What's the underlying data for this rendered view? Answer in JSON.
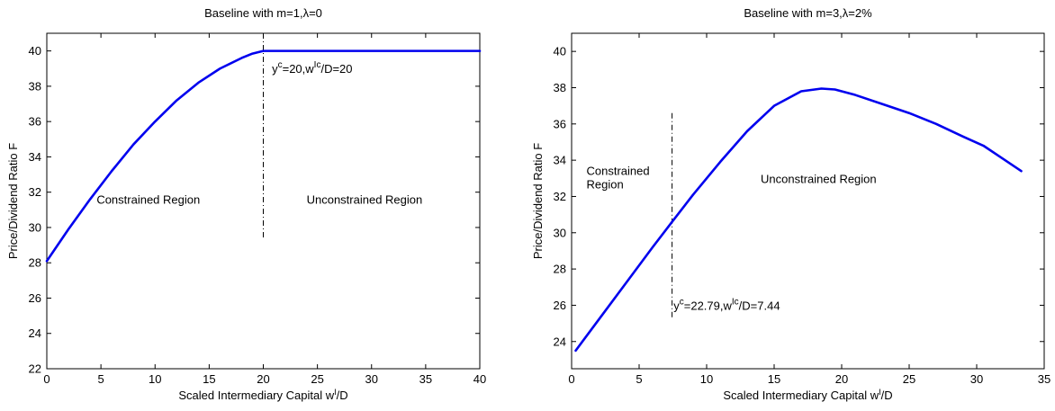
{
  "chart_data": [
    {
      "type": "line",
      "title": "Baseline with m=1,λ=0",
      "xlabel": "Scaled Intermediary Capital w",
      "xlabel_sup": "I",
      "xlabel_tail": "/D",
      "ylabel": "Price/Dividend Ratio F",
      "xlim": [
        0,
        40
      ],
      "ylim": [
        22,
        41
      ],
      "xticks": [
        0,
        5,
        10,
        15,
        20,
        25,
        30,
        35,
        40
      ],
      "yticks": [
        22,
        24,
        26,
        28,
        30,
        32,
        34,
        36,
        38,
        40
      ],
      "grid": false,
      "series": [
        {
          "color": "#0000ee",
          "x": [
            0,
            2,
            4,
            6,
            8,
            10,
            12,
            14,
            16,
            18,
            19,
            20,
            22,
            25,
            30,
            35,
            40
          ],
          "y": [
            28.1,
            29.9,
            31.6,
            33.2,
            34.7,
            36.0,
            37.2,
            38.2,
            39.0,
            39.6,
            39.85,
            40.0,
            40.0,
            40.0,
            40.0,
            40.0,
            40.0
          ]
        }
      ],
      "vline": {
        "x": 20,
        "y_from": 29.4,
        "y_to": 41
      },
      "annotations": [
        {
          "id": "threshold",
          "x": 20.8,
          "y": 38.75,
          "parts": [
            "y",
            "c",
            "=20,w",
            "Ic",
            "/D=20"
          ]
        },
        {
          "id": "left-region",
          "x": 4.6,
          "y": 31.35,
          "text": "Constrained Region"
        },
        {
          "id": "right-region",
          "x": 24,
          "y": 31.35,
          "text": "Unconstrained Region"
        }
      ]
    },
    {
      "type": "line",
      "title": "Baseline with m=3,λ=2%",
      "xlabel": "Scaled Intermediary Capital w",
      "xlabel_sup": "I",
      "xlabel_tail": "/D",
      "ylabel": "Price/Dividend Ratio F",
      "xlim": [
        0,
        35
      ],
      "ylim": [
        22.5,
        41
      ],
      "xticks": [
        0,
        5,
        10,
        15,
        20,
        25,
        30,
        35
      ],
      "yticks": [
        24,
        26,
        28,
        30,
        32,
        34,
        36,
        38,
        40
      ],
      "grid": false,
      "series": [
        {
          "color": "#0000ee",
          "x": [
            0.3,
            2,
            4,
            6,
            7.44,
            9,
            11,
            13,
            15,
            17,
            18.5,
            19.5,
            21,
            23,
            25,
            27,
            29,
            30.5,
            31.7,
            33.3
          ],
          "y": [
            23.5,
            25.2,
            27.2,
            29.2,
            30.6,
            32.1,
            33.9,
            35.6,
            37.0,
            37.8,
            37.95,
            37.9,
            37.6,
            37.1,
            36.6,
            36.0,
            35.3,
            34.8,
            34.2,
            33.4
          ]
        }
      ],
      "vline": {
        "x": 7.44,
        "y_from": 25.3,
        "y_to": 36.6
      },
      "annotations": [
        {
          "id": "threshold",
          "x": 7.55,
          "y": 25.75,
          "parts": [
            "y",
            "c",
            "=22.79,w",
            "Ic",
            "/D=7.44"
          ]
        },
        {
          "id": "left-region",
          "x": 1.1,
          "y": 33.2,
          "lines": [
            "Constrained",
            "Region"
          ]
        },
        {
          "id": "right-region",
          "x": 14,
          "y": 32.75,
          "text": "Unconstrained Region"
        }
      ]
    }
  ]
}
